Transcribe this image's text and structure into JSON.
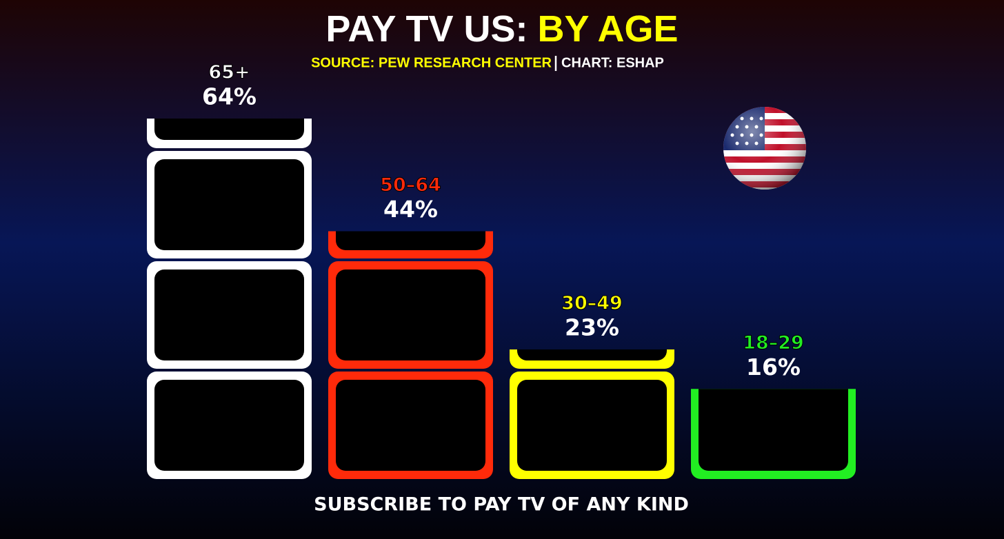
{
  "chart_data": {
    "type": "pictogram-bar",
    "title": "PAY TV US:",
    "title_highlight": "BY AGE",
    "source": "SOURCE: PEW RESEARCH CENTER",
    "credit": "CHART: ESHAP",
    "x_label": "SUBSCRIBE TO PAY TV OF ANY KIND",
    "categories": [
      "65+",
      "50–64",
      "30–49",
      "18–29"
    ],
    "values": [
      64,
      44,
      23,
      16
    ],
    "value_labels": [
      "64%",
      "44%",
      "23%",
      "16%"
    ],
    "colors": [
      "#ffffff",
      "#ff2a0a",
      "#ffff00",
      "#22ee22"
    ]
  }
}
